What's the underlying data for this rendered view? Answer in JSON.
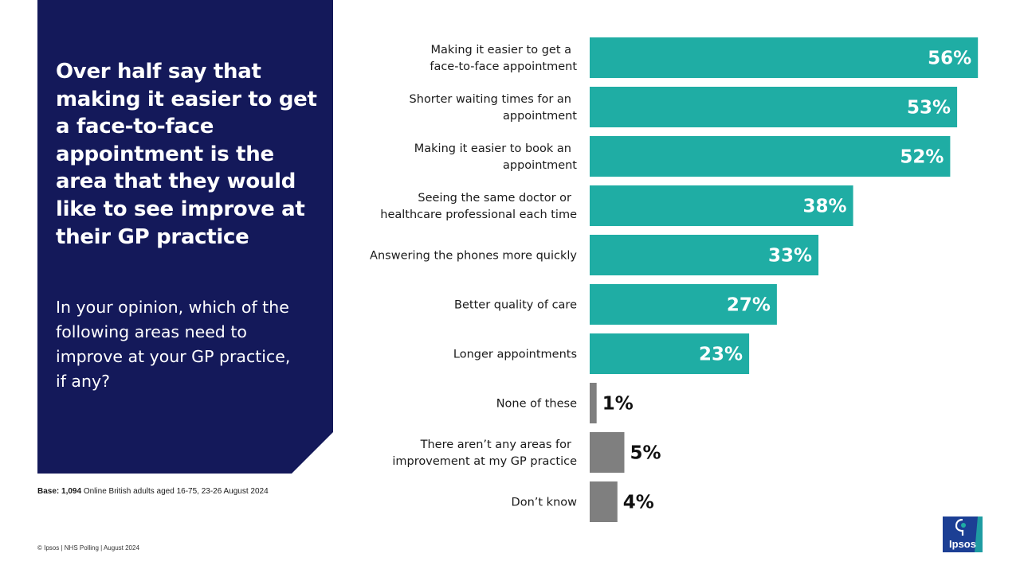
{
  "left_panel": {
    "headline": "Over half say that making it easier to get a face-to-face appointment is the area that they would like to see improve at their GP practice",
    "question": "In your opinion, which of the following areas need to improve at your GP practice, if any?"
  },
  "base": {
    "label": "Base:",
    "count": "1,094",
    "description": "Online British adults aged 16-75, 23-26 August 2024"
  },
  "footer": "© Ipsos | NHS Polling | August 2024",
  "logo": {
    "text": "Ipsos",
    "color": "#1c3f94"
  },
  "colors": {
    "teal": "#1fada4",
    "grey": "#7f7f7f",
    "navy": "#14195a"
  },
  "chart_data": {
    "type": "bar",
    "orientation": "horizontal",
    "unit": "%",
    "categories": [
      [
        "Making it easier to get a",
        "face-to-face appointment"
      ],
      [
        "Shorter waiting times for an",
        "appointment"
      ],
      [
        "Making it easier to book an",
        "appointment"
      ],
      [
        "Seeing the same doctor or",
        "healthcare professional each time"
      ],
      [
        "Answering the phones more quickly"
      ],
      [
        "Better quality of care"
      ],
      [
        "Longer appointments"
      ],
      [
        "None of these"
      ],
      [
        "There aren’t any areas for",
        "improvement  at my GP practice"
      ],
      [
        "Don’t know"
      ]
    ],
    "values": [
      56,
      53,
      52,
      38,
      33,
      27,
      23,
      1,
      5,
      4
    ],
    "labels": [
      "56%",
      "53%",
      "52%",
      "38%",
      "33%",
      "27%",
      "23%",
      "1%",
      "5%",
      "4%"
    ],
    "highlight": [
      true,
      true,
      true,
      true,
      true,
      true,
      true,
      false,
      false,
      false
    ]
  }
}
